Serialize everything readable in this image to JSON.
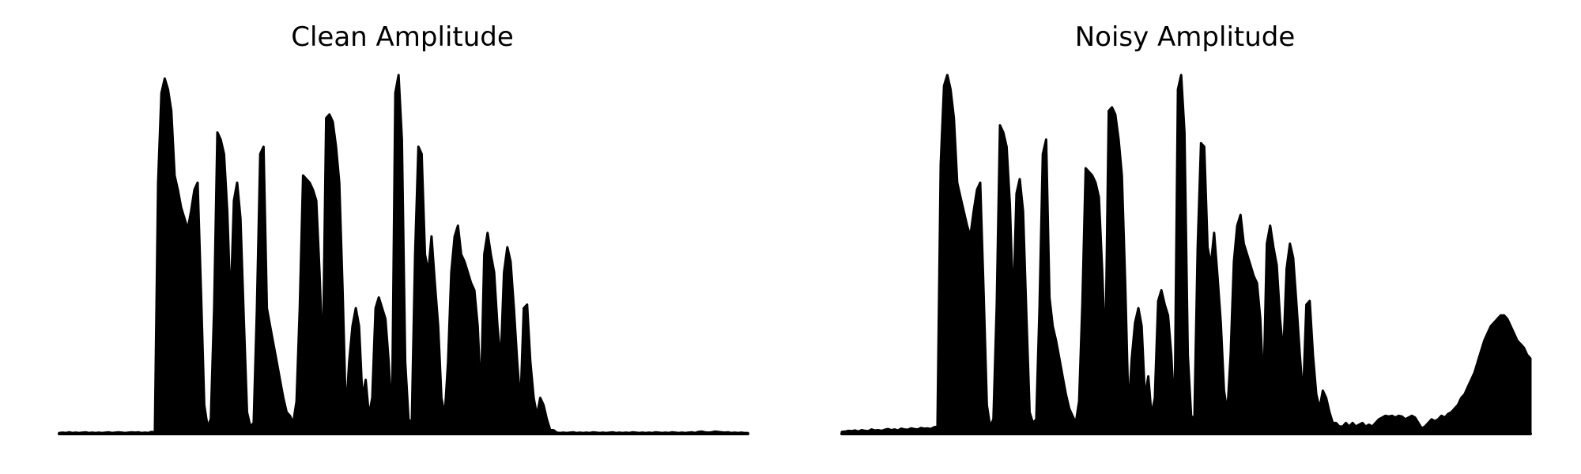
{
  "figure": {
    "background": "#ffffff",
    "line_color": "#000000"
  },
  "chart_data": [
    {
      "type": "area",
      "title": "Clean Amplitude",
      "xlabel": "",
      "ylabel": "",
      "axes_visible": false,
      "grid": false,
      "ylim": [
        0,
        1.0
      ],
      "series": [
        {
          "values": [
            0.002,
            0.003,
            0.002,
            0.004,
            0.002,
            0.003,
            0.002,
            0.003,
            0.004,
            0.002,
            0.003,
            0.002,
            0.003,
            0.002,
            0.003,
            0.004,
            0.002,
            0.003,
            0.004,
            0.003,
            0.002,
            0.003,
            0.004,
            0.003,
            0.004,
            0.002,
            0.003,
            0.002,
            0.005,
            0.004,
            0.7,
            0.95,
            0.99,
            0.96,
            0.9,
            0.72,
            0.68,
            0.63,
            0.6,
            0.57,
            0.62,
            0.68,
            0.7,
            0.4,
            0.08,
            0.02,
            0.04,
            0.35,
            0.84,
            0.82,
            0.78,
            0.62,
            0.35,
            0.65,
            0.7,
            0.6,
            0.32,
            0.06,
            0.02,
            0.03,
            0.35,
            0.78,
            0.8,
            0.35,
            0.3,
            0.25,
            0.2,
            0.15,
            0.1,
            0.06,
            0.05,
            0.03,
            0.09,
            0.35,
            0.72,
            0.71,
            0.7,
            0.68,
            0.65,
            0.45,
            0.2,
            0.88,
            0.89,
            0.87,
            0.8,
            0.7,
            0.4,
            0.05,
            0.2,
            0.3,
            0.35,
            0.3,
            0.1,
            0.15,
            0.05,
            0.1,
            0.35,
            0.38,
            0.35,
            0.32,
            0.2,
            0.04,
            0.95,
            1.0,
            0.82,
            0.2,
            0.04,
            0.03,
            0.5,
            0.8,
            0.78,
            0.5,
            0.45,
            0.55,
            0.42,
            0.3,
            0.1,
            0.05,
            0.2,
            0.45,
            0.55,
            0.58,
            0.5,
            0.48,
            0.45,
            0.42,
            0.4,
            0.3,
            0.1,
            0.5,
            0.56,
            0.5,
            0.45,
            0.3,
            0.2,
            0.45,
            0.52,
            0.48,
            0.35,
            0.2,
            0.08,
            0.35,
            0.36,
            0.2,
            0.1,
            0.05,
            0.1,
            0.08,
            0.04,
            0.01,
            0.01,
            0.003,
            0.002,
            0.003,
            0.002,
            0.003,
            0.004,
            0.002,
            0.003,
            0.002,
            0.003,
            0.002,
            0.004,
            0.003,
            0.002,
            0.003,
            0.002,
            0.003,
            0.004,
            0.002,
            0.003,
            0.002,
            0.003,
            0.002,
            0.004,
            0.003,
            0.002,
            0.003,
            0.002,
            0.003,
            0.002,
            0.004,
            0.003,
            0.002,
            0.003,
            0.002,
            0.004,
            0.003,
            0.002,
            0.003,
            0.002,
            0.003,
            0.004,
            0.002,
            0.005,
            0.006,
            0.004,
            0.003,
            0.004,
            0.006,
            0.005,
            0.004,
            0.003,
            0.004,
            0.002,
            0.003,
            0.002,
            0.003,
            0.002,
            0.002
          ]
        }
      ]
    },
    {
      "type": "area",
      "title": "Noisy Amplitude",
      "xlabel": "",
      "ylabel": "",
      "axes_visible": false,
      "grid": false,
      "ylim": [
        0,
        1.0
      ],
      "series": [
        {
          "values": [
            0.005,
            0.006,
            0.008,
            0.007,
            0.009,
            0.006,
            0.01,
            0.008,
            0.007,
            0.012,
            0.009,
            0.01,
            0.008,
            0.011,
            0.013,
            0.01,
            0.012,
            0.009,
            0.014,
            0.012,
            0.011,
            0.015,
            0.013,
            0.012,
            0.016,
            0.014,
            0.015,
            0.013,
            0.018,
            0.02,
            0.75,
            0.97,
            1.0,
            0.96,
            0.88,
            0.7,
            0.66,
            0.62,
            0.58,
            0.55,
            0.62,
            0.68,
            0.7,
            0.4,
            0.08,
            0.02,
            0.04,
            0.36,
            0.86,
            0.84,
            0.8,
            0.64,
            0.35,
            0.67,
            0.71,
            0.62,
            0.33,
            0.06,
            0.03,
            0.04,
            0.35,
            0.78,
            0.82,
            0.38,
            0.3,
            0.26,
            0.21,
            0.16,
            0.11,
            0.07,
            0.05,
            0.03,
            0.09,
            0.36,
            0.74,
            0.73,
            0.72,
            0.7,
            0.66,
            0.46,
            0.22,
            0.9,
            0.91,
            0.89,
            0.82,
            0.72,
            0.42,
            0.06,
            0.21,
            0.31,
            0.35,
            0.3,
            0.1,
            0.16,
            0.05,
            0.1,
            0.37,
            0.4,
            0.36,
            0.33,
            0.22,
            0.05,
            0.96,
            1.0,
            0.84,
            0.22,
            0.05,
            0.04,
            0.52,
            0.81,
            0.8,
            0.52,
            0.47,
            0.56,
            0.44,
            0.31,
            0.12,
            0.06,
            0.22,
            0.48,
            0.58,
            0.61,
            0.53,
            0.5,
            0.47,
            0.44,
            0.42,
            0.32,
            0.12,
            0.53,
            0.58,
            0.52,
            0.47,
            0.32,
            0.22,
            0.46,
            0.53,
            0.49,
            0.36,
            0.22,
            0.1,
            0.36,
            0.37,
            0.22,
            0.11,
            0.07,
            0.12,
            0.1,
            0.06,
            0.03,
            0.03,
            0.02,
            0.02,
            0.03,
            0.02,
            0.03,
            0.02,
            0.025,
            0.03,
            0.02,
            0.025,
            0.02,
            0.03,
            0.04,
            0.045,
            0.05,
            0.048,
            0.05,
            0.045,
            0.05,
            0.048,
            0.04,
            0.045,
            0.05,
            0.045,
            0.03,
            0.015,
            0.02,
            0.03,
            0.04,
            0.035,
            0.04,
            0.05,
            0.045,
            0.055,
            0.06,
            0.07,
            0.08,
            0.1,
            0.11,
            0.13,
            0.15,
            0.17,
            0.2,
            0.23,
            0.26,
            0.28,
            0.3,
            0.31,
            0.32,
            0.33,
            0.33,
            0.32,
            0.3,
            0.28,
            0.26,
            0.25,
            0.24,
            0.22,
            0.21
          ]
        }
      ]
    }
  ]
}
